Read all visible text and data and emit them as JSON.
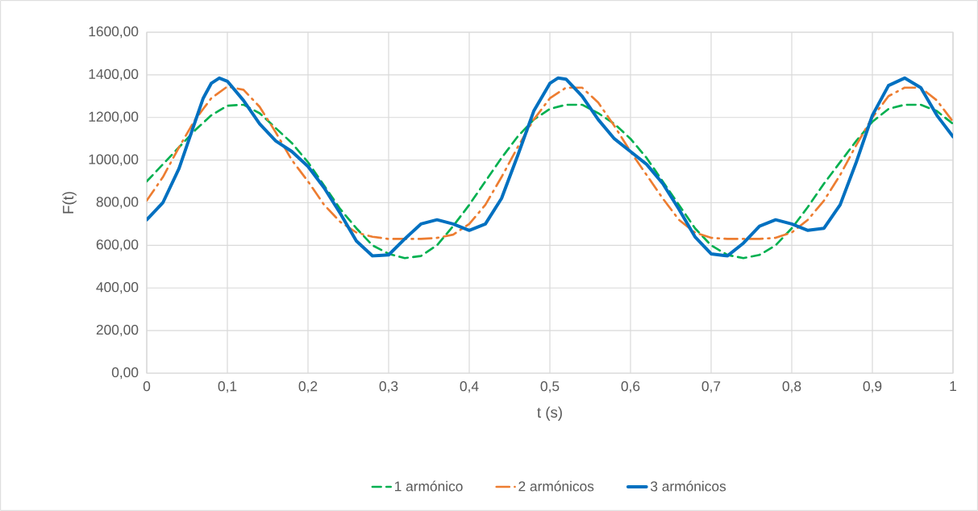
{
  "chart_data": {
    "type": "line",
    "xlabel": "t (s)",
    "ylabel": "F(t)",
    "xlim": [
      0,
      1
    ],
    "ylim": [
      0,
      1600
    ],
    "xticks": [
      0,
      {
        "value": 0.1,
        "label": "0,1"
      },
      {
        "value": 0.2,
        "label": "0,2"
      },
      {
        "value": 0.3,
        "label": "0,3"
      },
      {
        "value": 0.4,
        "label": "0,4"
      },
      {
        "value": 0.5,
        "label": "0,5"
      },
      {
        "value": 0.6,
        "label": "0,6"
      },
      {
        "value": 0.7,
        "label": "0,7"
      },
      {
        "value": 0.8,
        "label": "0,8"
      },
      {
        "value": 0.9,
        "label": "0,9"
      },
      1
    ],
    "yticks": [
      {
        "value": 0,
        "label": "0,00"
      },
      {
        "value": 200,
        "label": "200,00"
      },
      {
        "value": 400,
        "label": "400,00"
      },
      {
        "value": 600,
        "label": "600,00"
      },
      {
        "value": 800,
        "label": "800,00"
      },
      {
        "value": 1000,
        "label": "1000,00"
      },
      {
        "value": 1200,
        "label": "1200,00"
      },
      {
        "value": 1400,
        "label": "1400,00"
      },
      {
        "value": 1600,
        "label": "1600,00"
      }
    ],
    "grid": true,
    "legend": "bottom",
    "marker": "none",
    "series": [
      {
        "name": "1 armónico",
        "color": "#00b050",
        "line_style": "dashed",
        "x": [
          0,
          0.02,
          0.04,
          0.06,
          0.08,
          0.1,
          0.12,
          0.14,
          0.16,
          0.18,
          0.2,
          0.22,
          0.24,
          0.26,
          0.28,
          0.3,
          0.32,
          0.34,
          0.36,
          0.38,
          0.4,
          0.42,
          0.44,
          0.46,
          0.48,
          0.5,
          0.52,
          0.54,
          0.56,
          0.58,
          0.6,
          0.62,
          0.64,
          0.66,
          0.68,
          0.7,
          0.72,
          0.74,
          0.76,
          0.78,
          0.8,
          0.82,
          0.84,
          0.86,
          0.88,
          0.9,
          0.92,
          0.94,
          0.96,
          0.98,
          1
        ],
        "values": [
          900,
          980,
          1060,
          1140,
          1210,
          1255,
          1260,
          1220,
          1150,
          1080,
          990,
          880,
          770,
          680,
          600,
          560,
          540,
          550,
          600,
          690,
          790,
          900,
          1010,
          1110,
          1190,
          1240,
          1260,
          1260,
          1220,
          1170,
          1100,
          1010,
          900,
          790,
          680,
          600,
          555,
          540,
          555,
          600,
          680,
          780,
          890,
          990,
          1090,
          1180,
          1240,
          1260,
          1260,
          1230,
          1170
        ]
      },
      {
        "name": "2 armónicos",
        "color": "#ed7d31",
        "line_style": "dashdot",
        "x": [
          0,
          0.02,
          0.04,
          0.06,
          0.08,
          0.1,
          0.12,
          0.14,
          0.16,
          0.18,
          0.2,
          0.22,
          0.24,
          0.26,
          0.28,
          0.3,
          0.32,
          0.34,
          0.36,
          0.38,
          0.4,
          0.42,
          0.44,
          0.46,
          0.48,
          0.5,
          0.52,
          0.54,
          0.56,
          0.58,
          0.6,
          0.62,
          0.64,
          0.66,
          0.68,
          0.7,
          0.72,
          0.74,
          0.76,
          0.78,
          0.8,
          0.82,
          0.84,
          0.86,
          0.88,
          0.9,
          0.92,
          0.94,
          0.96,
          0.98,
          1
        ],
        "values": [
          810,
          920,
          1060,
          1190,
          1290,
          1345,
          1330,
          1250,
          1130,
          1000,
          900,
          790,
          710,
          660,
          640,
          630,
          630,
          630,
          635,
          650,
          700,
          790,
          920,
          1060,
          1190,
          1290,
          1340,
          1340,
          1270,
          1160,
          1040,
          930,
          820,
          720,
          660,
          635,
          630,
          630,
          630,
          635,
          660,
          720,
          810,
          930,
          1070,
          1200,
          1300,
          1340,
          1340,
          1280,
          1180
        ]
      },
      {
        "name": "3 armónicos",
        "color": "#0070c0",
        "line_style": "solid",
        "x": [
          0,
          0.02,
          0.04,
          0.06,
          0.07,
          0.08,
          0.09,
          0.1,
          0.12,
          0.14,
          0.16,
          0.18,
          0.2,
          0.22,
          0.24,
          0.26,
          0.28,
          0.3,
          0.32,
          0.34,
          0.36,
          0.38,
          0.4,
          0.42,
          0.44,
          0.46,
          0.48,
          0.5,
          0.51,
          0.52,
          0.54,
          0.56,
          0.58,
          0.6,
          0.62,
          0.64,
          0.66,
          0.68,
          0.7,
          0.72,
          0.74,
          0.76,
          0.78,
          0.8,
          0.82,
          0.84,
          0.86,
          0.88,
          0.9,
          0.92,
          0.94,
          0.96,
          0.98,
          1
        ],
        "values": [
          720,
          800,
          960,
          1180,
          1290,
          1360,
          1385,
          1370,
          1280,
          1170,
          1090,
          1040,
          970,
          870,
          750,
          620,
          550,
          555,
          630,
          700,
          720,
          700,
          670,
          700,
          820,
          1020,
          1230,
          1360,
          1385,
          1380,
          1300,
          1190,
          1100,
          1040,
          980,
          890,
          770,
          640,
          560,
          550,
          610,
          690,
          720,
          700,
          670,
          680,
          790,
          990,
          1210,
          1350,
          1385,
          1340,
          1210,
          1110
        ]
      }
    ]
  }
}
